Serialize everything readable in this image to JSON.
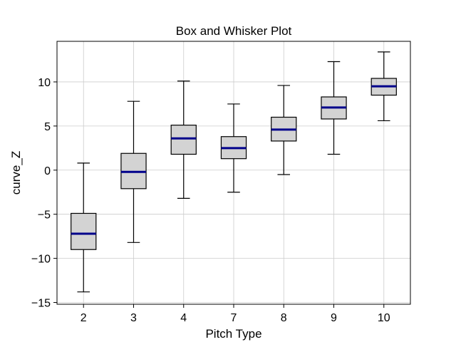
{
  "chart_data": {
    "type": "box",
    "title": "Box and Whisker Plot",
    "xlabel": "Pitch Type",
    "ylabel": "curve_Z",
    "categories": [
      "2",
      "3",
      "4",
      "7",
      "8",
      "9",
      "10"
    ],
    "boxes": [
      {
        "category": "2",
        "whisker_low": -13.8,
        "q1": -9.0,
        "median": -7.2,
        "q3": -4.9,
        "whisker_high": 0.8
      },
      {
        "category": "3",
        "whisker_low": -8.2,
        "q1": -2.1,
        "median": -0.2,
        "q3": 1.9,
        "whisker_high": 7.8
      },
      {
        "category": "4",
        "whisker_low": -3.2,
        "q1": 1.8,
        "median": 3.6,
        "q3": 5.1,
        "whisker_high": 10.1
      },
      {
        "category": "7",
        "whisker_low": -2.5,
        "q1": 1.3,
        "median": 2.5,
        "q3": 3.8,
        "whisker_high": 7.5
      },
      {
        "category": "8",
        "whisker_low": -0.5,
        "q1": 3.3,
        "median": 4.6,
        "q3": 6.0,
        "whisker_high": 9.6
      },
      {
        "category": "9",
        "whisker_low": 1.8,
        "q1": 5.8,
        "median": 7.1,
        "q3": 8.3,
        "whisker_high": 12.3
      },
      {
        "category": "10",
        "whisker_low": 5.6,
        "q1": 8.5,
        "median": 9.5,
        "q3": 10.4,
        "whisker_high": 13.4
      }
    ],
    "y_ticks": [
      -15,
      -10,
      -5,
      0,
      5,
      10
    ],
    "y_tick_labels": [
      "−15",
      "−10",
      "−5",
      "0",
      "5",
      "10"
    ],
    "ylim": [
      -15.2,
      14.6
    ],
    "grid": true,
    "colors": {
      "box_fill": "#d3d3d3",
      "box_edge": "#000000",
      "median": "#00008b",
      "grid": "#cccccc"
    }
  }
}
